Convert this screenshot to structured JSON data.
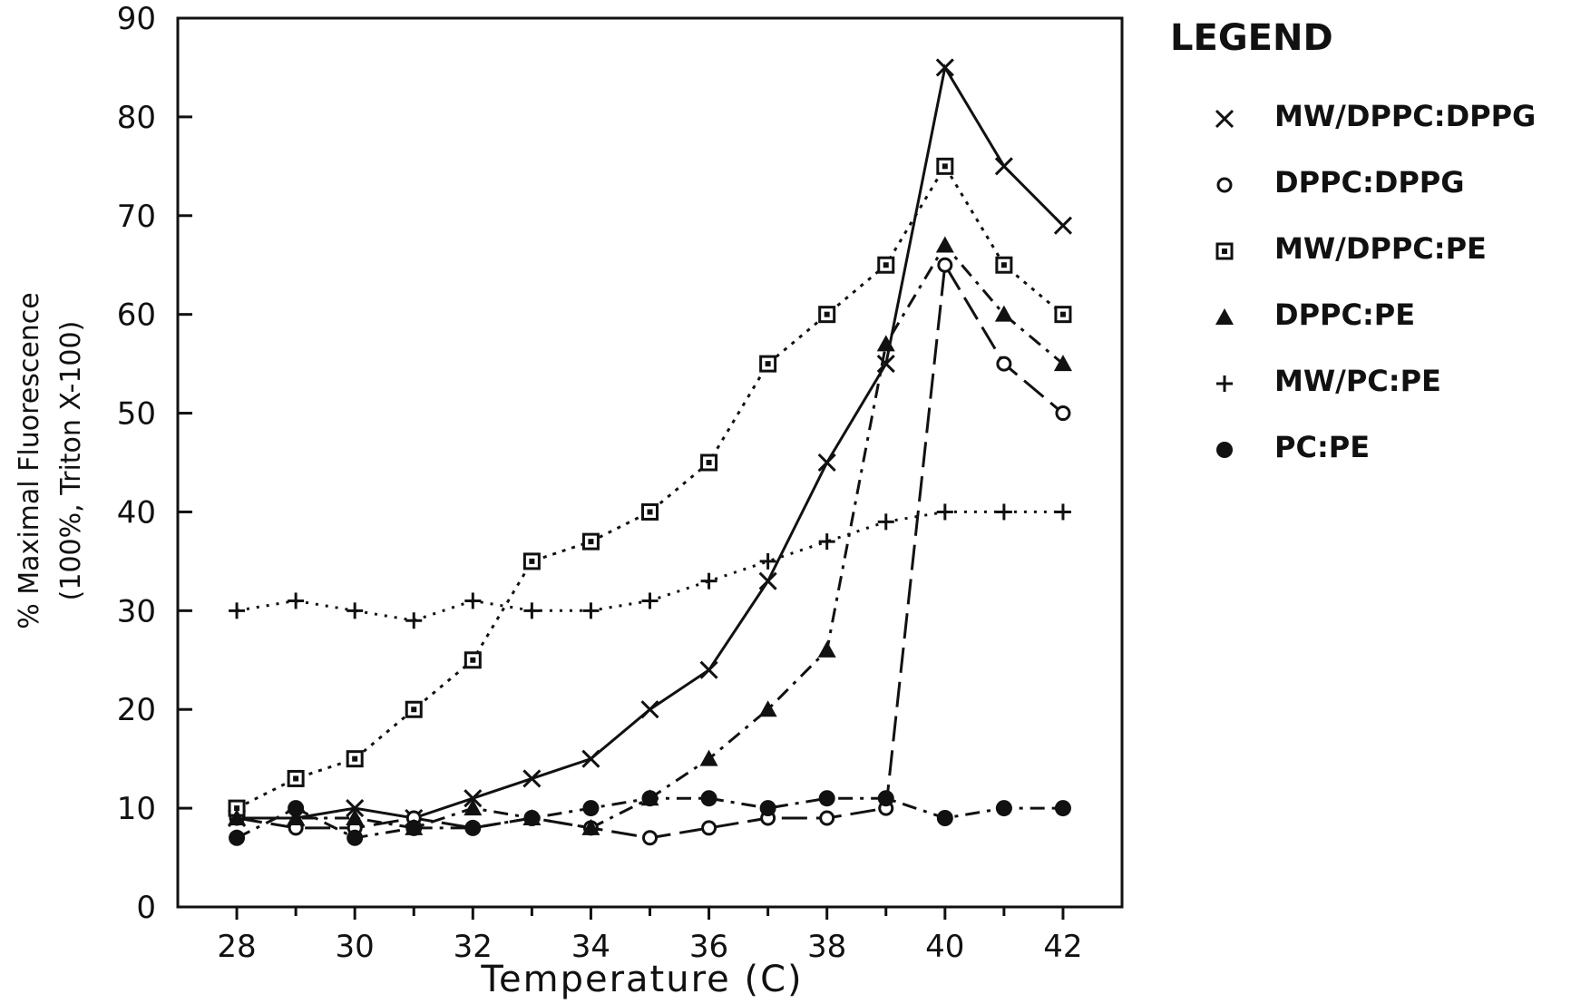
{
  "chart_data": {
    "type": "line",
    "title": "",
    "xlabel": "Temperature  (C)",
    "ylabel_line1": "% Maximal Fluorescence",
    "ylabel_line2": "(100%, Triton X-100)",
    "xlim": [
      27,
      43
    ],
    "ylim": [
      0,
      90
    ],
    "xticks": [
      28,
      30,
      32,
      34,
      36,
      38,
      40,
      42
    ],
    "xticks_minor": [
      29,
      31,
      33,
      35,
      37,
      39,
      41
    ],
    "yticks": [
      0,
      10,
      20,
      30,
      40,
      50,
      60,
      70,
      80,
      90
    ],
    "grid": false,
    "legend": {
      "title": "LEGEND",
      "position": "right"
    },
    "x": [
      28,
      29,
      30,
      31,
      32,
      33,
      34,
      35,
      36,
      37,
      38,
      39,
      40,
      41,
      42
    ],
    "series": [
      {
        "name": "MW/DPPC:DPPG",
        "marker": "x",
        "dash": "solid",
        "values": [
          9,
          9,
          10,
          9,
          11,
          13,
          15,
          20,
          24,
          33,
          45,
          55,
          85,
          75,
          69
        ]
      },
      {
        "name": "DPPC:DPPG",
        "marker": "circle-open",
        "dash": "long-dash",
        "values": [
          9,
          8,
          8,
          9,
          8,
          9,
          8,
          7,
          8,
          9,
          9,
          10,
          65,
          55,
          50
        ]
      },
      {
        "name": "MW/DPPC:PE",
        "marker": "square-open",
        "dash": "dotted",
        "values": [
          10,
          13,
          15,
          20,
          25,
          35,
          37,
          40,
          45,
          55,
          60,
          65,
          75,
          65,
          60
        ]
      },
      {
        "name": "DPPC:PE",
        "marker": "triangle",
        "dash": "dash-dot",
        "values": [
          9,
          9,
          9,
          8,
          10,
          9,
          8,
          11,
          15,
          20,
          26,
          57,
          67,
          60,
          55
        ]
      },
      {
        "name": "MW/PC:PE",
        "marker": "plus",
        "dash": "dotted-fine",
        "values": [
          30,
          31,
          30,
          29,
          31,
          30,
          30,
          31,
          33,
          35,
          37,
          39,
          40,
          40,
          40
        ]
      },
      {
        "name": "PC:PE",
        "marker": "circle-filled",
        "dash": "dash-dot",
        "values": [
          7,
          10,
          7,
          8,
          8,
          9,
          10,
          11,
          11,
          10,
          11,
          11,
          9,
          10,
          10
        ]
      }
    ]
  }
}
